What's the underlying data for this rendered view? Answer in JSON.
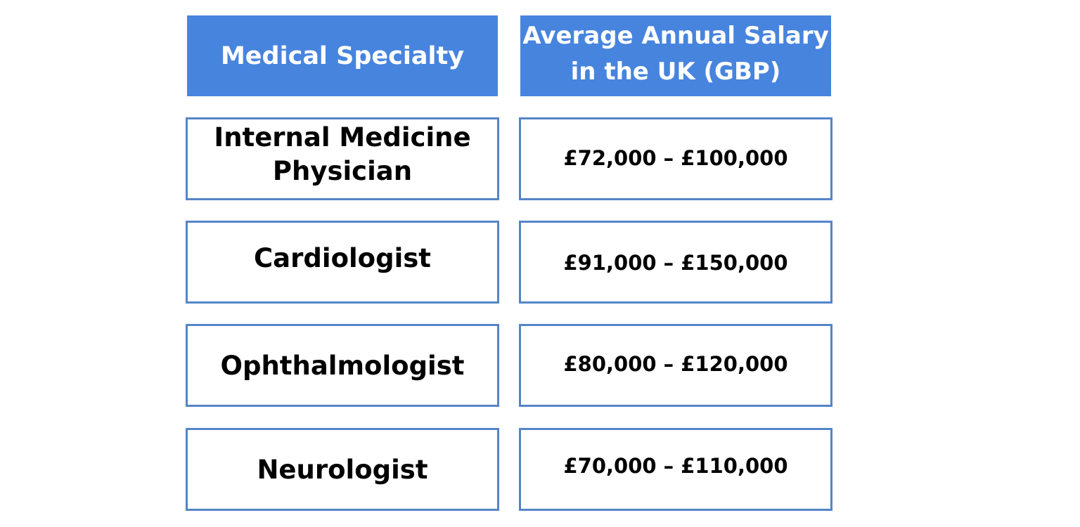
{
  "table": {
    "headers": [
      "Medical Specialty",
      "Average Annual Salary\nin the UK (GBP)"
    ],
    "rows": [
      {
        "specialty": "Internal Medicine\nPhysician",
        "salary": "£72,000 – £100,000"
      },
      {
        "specialty": "Cardiologist",
        "salary": "£91,000 – £150,000"
      },
      {
        "specialty": "Ophthalmologist",
        "salary": "£80,000 – £120,000"
      },
      {
        "specialty": "Neurologist",
        "salary": "£70,000 – £110,000"
      }
    ],
    "colors": {
      "header_background": "#4784de",
      "header_text": "#ffffff",
      "cell_border": "#5585c9",
      "cell_text": "#000000"
    }
  }
}
